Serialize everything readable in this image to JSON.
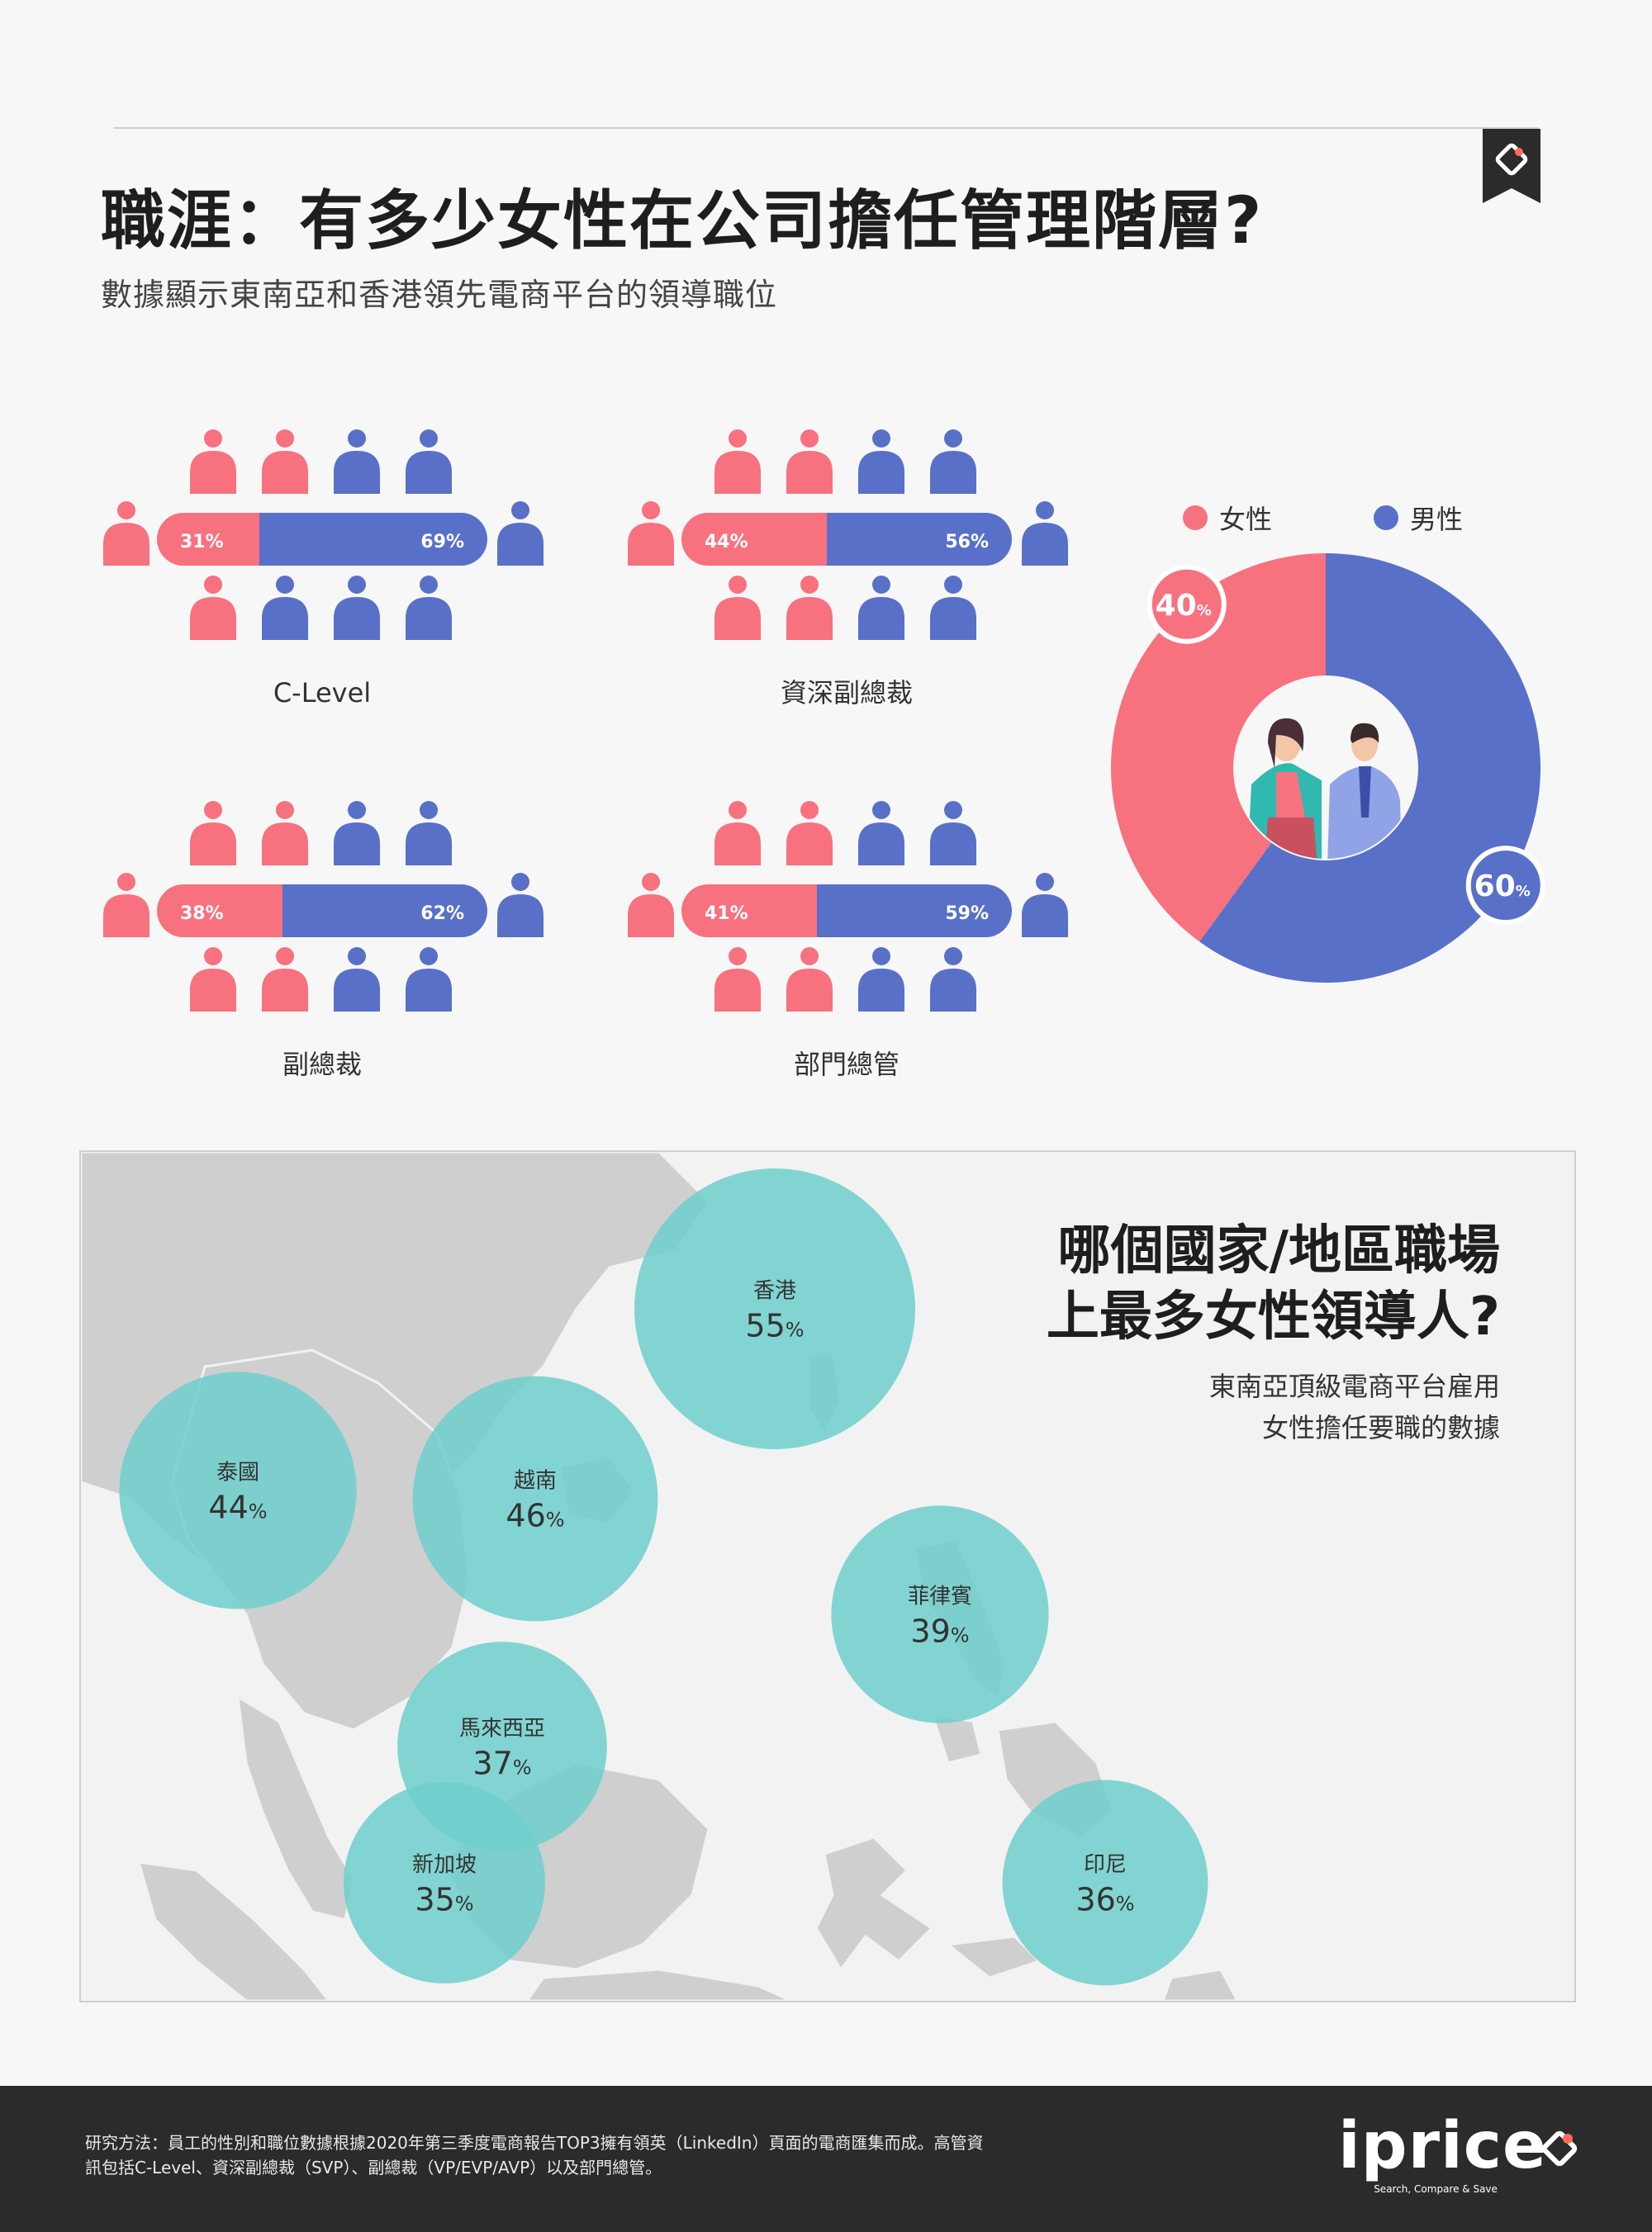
{
  "header": {
    "title": "職涯：有多少女性在公司擔任管理階層?",
    "subtitle": "數據顯示東南亞和香港領先電商平台的領導職位"
  },
  "colors": {
    "female": "#f7717f",
    "male": "#5870c8",
    "bubble": "#6fcfcc",
    "land": "#cfcfcf"
  },
  "chart_data": [
    {
      "type": "bar",
      "categories": [
        "C-Level",
        "資深副總裁",
        "副總裁",
        "部門總管"
      ],
      "series": [
        {
          "name": "女性",
          "values": [
            31,
            44,
            38,
            41
          ]
        },
        {
          "name": "男性",
          "values": [
            69,
            56,
            62,
            59
          ]
        }
      ],
      "value_labels": [
        [
          "31%",
          "69%"
        ],
        [
          "44%",
          "56%"
        ],
        [
          "38%",
          "62%"
        ],
        [
          "41%",
          "59%"
        ]
      ],
      "icon_female_counts": [
        3,
        4,
        4,
        4
      ],
      "icon_total": 10
    },
    {
      "type": "pie",
      "legend": [
        "女性",
        "男性"
      ],
      "values": [
        40,
        60
      ],
      "labels": [
        "40",
        "60"
      ],
      "unit": "%",
      "legend_position": "top"
    },
    {
      "type": "scatter",
      "title": "哪個國家/地區職場上最多女性領導人?",
      "subtitle": [
        "東南亞頂級電商平台雇用",
        "女性擔任要職的數據"
      ],
      "points": [
        {
          "name": "香港",
          "value": 55
        },
        {
          "name": "泰國",
          "value": 44
        },
        {
          "name": "越南",
          "value": 46
        },
        {
          "name": "菲律賓",
          "value": 39
        },
        {
          "name": "馬來西亞",
          "value": 37
        },
        {
          "name": "新加坡",
          "value": 35
        },
        {
          "name": "印尼",
          "value": 36
        }
      ],
      "unit": "%"
    }
  ],
  "map": {
    "title_line1": "哪個國家/地區職場",
    "title_line2": "上最多女性領導人?",
    "subtitle_line1": "東南亞頂級電商平台雇用",
    "subtitle_line2": "女性擔任要職的數據"
  },
  "footer": {
    "note_line1": "研究方法：員工的性別和職位數據根據2020年第三季度電商報告TOP3擁有領英（LinkedIn）頁面的電商匯集而成。高管資",
    "note_line2": "訊包括C-Level、資深副總裁（SVP）、副總裁（VP/EVP/AVP）以及部門總管。",
    "logo": "iprice",
    "tagline": "Search, Compare & Save"
  }
}
